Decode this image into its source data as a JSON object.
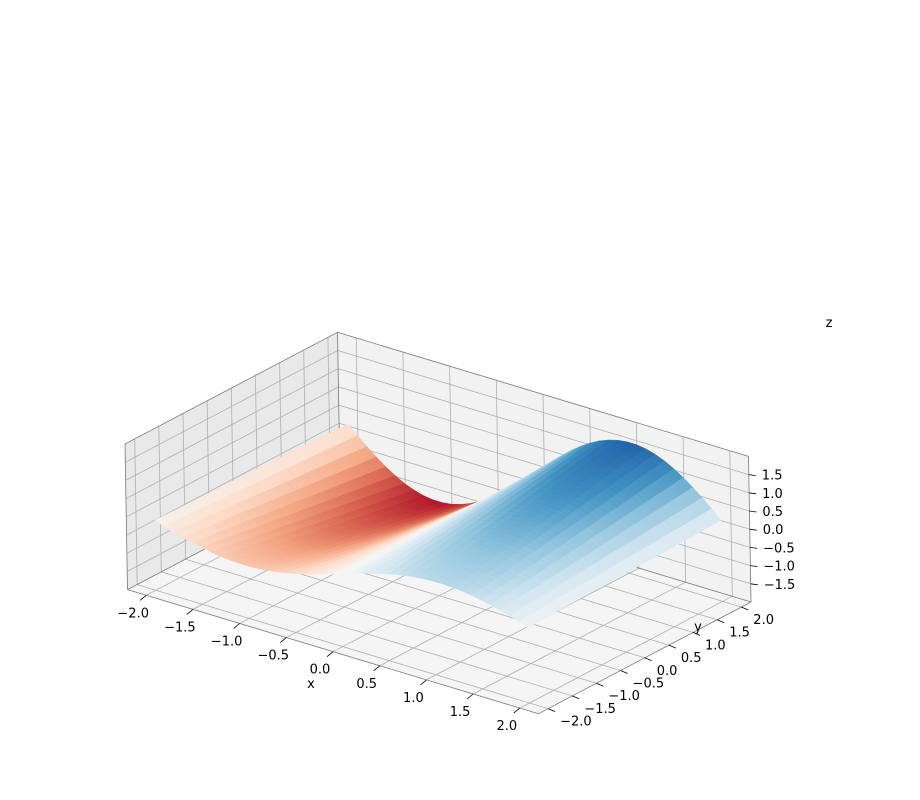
{
  "chart_data": {
    "type": "surface3d",
    "title": "",
    "xlabel": "x",
    "ylabel": "y",
    "zlabel": "z",
    "xlim": [
      -2.2,
      2.2
    ],
    "ylim": [
      -2.2,
      2.2
    ],
    "zlim": [
      -2.0,
      2.0
    ],
    "x_ticks": [
      -2.0,
      -1.5,
      -1.0,
      -0.5,
      0.0,
      0.5,
      1.0,
      1.5,
      2.0
    ],
    "y_ticks": [
      -2.0,
      -1.5,
      -1.0,
      -0.5,
      0.0,
      0.5,
      1.0,
      1.5,
      2.0
    ],
    "z_ticks": [
      -1.5,
      -1.0,
      -0.5,
      0.0,
      0.5,
      1.0,
      1.5
    ],
    "x_tick_labels": [
      "−2.0",
      "−1.5",
      "−1.0",
      "−0.5",
      "0.0",
      "0.5",
      "1.0",
      "1.5",
      "2.0"
    ],
    "y_tick_labels": [
      "−2.0",
      "−1.5",
      "−1.0",
      "−0.5",
      "0.0",
      "0.5",
      "1.0",
      "1.5",
      "2.0"
    ],
    "z_tick_labels": [
      "−1.5",
      "−1.0",
      "−0.5",
      "0.0",
      "0.5",
      "1.0",
      "1.5"
    ],
    "x_range": [
      -2.0,
      2.0
    ],
    "y_range": [
      -2.0,
      2.0
    ],
    "surface": "z = sin(x) * (y^2 - x^2 + 1) / 2 approx; saddle-wave shape",
    "colormap": "RdBu",
    "grid": true
  },
  "colors": {
    "pane_back": "#f2f2f2",
    "pane_left": "#e9e9e9",
    "pane_floor": "#f5f5f5"
  }
}
